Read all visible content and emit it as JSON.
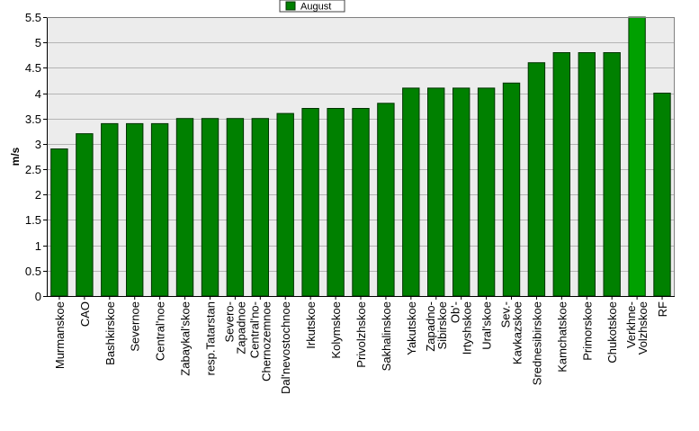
{
  "chart_data": {
    "type": "bar",
    "categories": [
      "Murmanskoe",
      "CAO",
      "Bashkirskoe",
      "Severnoe",
      "Central'noe",
      "Zabaykal'skoe",
      "resp.Tatarstan",
      "Severo-Zapadnoe",
      "Central'no-Chernozemnoe",
      "Dal'nevostochnoe",
      "Irkutskoe",
      "Kolymskoe",
      "Privolzhskoe",
      "Sakhalinskoe",
      "Yakutskoe",
      "Zapadno-Sibirskoe",
      "Ob'-Irtyshskoe",
      "Ural'skoe",
      "Sev.-Kavkazskoe",
      "Srednesibirskoe",
      "Kamchatskoe",
      "Primorskoe",
      "Chukotskoe",
      "Verkhne-Volzhskoe",
      "RF"
    ],
    "series": [
      {
        "name": "August",
        "values": [
          2.9,
          3.2,
          3.4,
          3.4,
          3.4,
          3.5,
          3.5,
          3.5,
          3.5,
          3.6,
          3.7,
          3.7,
          3.7,
          3.8,
          4.1,
          4.1,
          4.1,
          4.1,
          4.2,
          4.6,
          4.8,
          4.8,
          4.8,
          5.5,
          4.0
        ]
      }
    ],
    "ylabel": "m/s",
    "xlabel": "",
    "ylim": [
      0,
      5.5
    ],
    "yticks": [
      "0",
      "0.5",
      "1",
      "1.5",
      "2",
      "2.5",
      "3",
      "3.5",
      "4",
      "4.5",
      "5",
      "5.5"
    ],
    "grid": true,
    "legend_position": "top-center",
    "colors": {
      "bar": "#008000",
      "bar_highlight": "#00a000",
      "bar_edge": "#003300",
      "plot_background": "#ececec",
      "grid": "#b4b4b4"
    }
  }
}
